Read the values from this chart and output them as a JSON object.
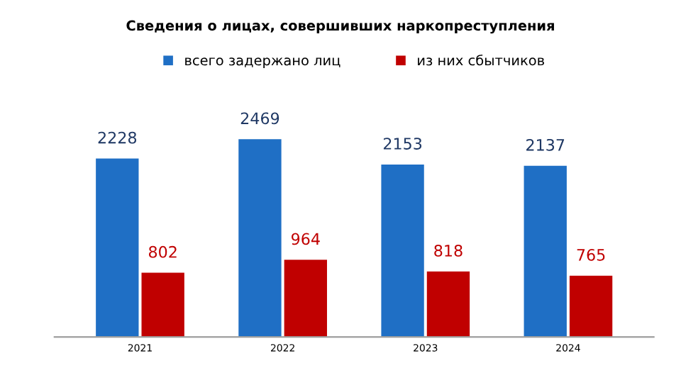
{
  "chart_data": {
    "type": "bar",
    "title": "Сведения о лицах, совершивших наркопреступления",
    "categories": [
      "2021",
      "2022",
      "2023",
      "2024"
    ],
    "series": [
      {
        "name": "всего задержано лиц",
        "color": "#1f6fc5",
        "values": [
          2228,
          2469,
          2153,
          2137
        ]
      },
      {
        "name": "из них сбытчиков",
        "color": "#c00000",
        "values": [
          802,
          964,
          818,
          765
        ]
      }
    ],
    "data_labels": true,
    "legend": "top",
    "grid": false
  }
}
